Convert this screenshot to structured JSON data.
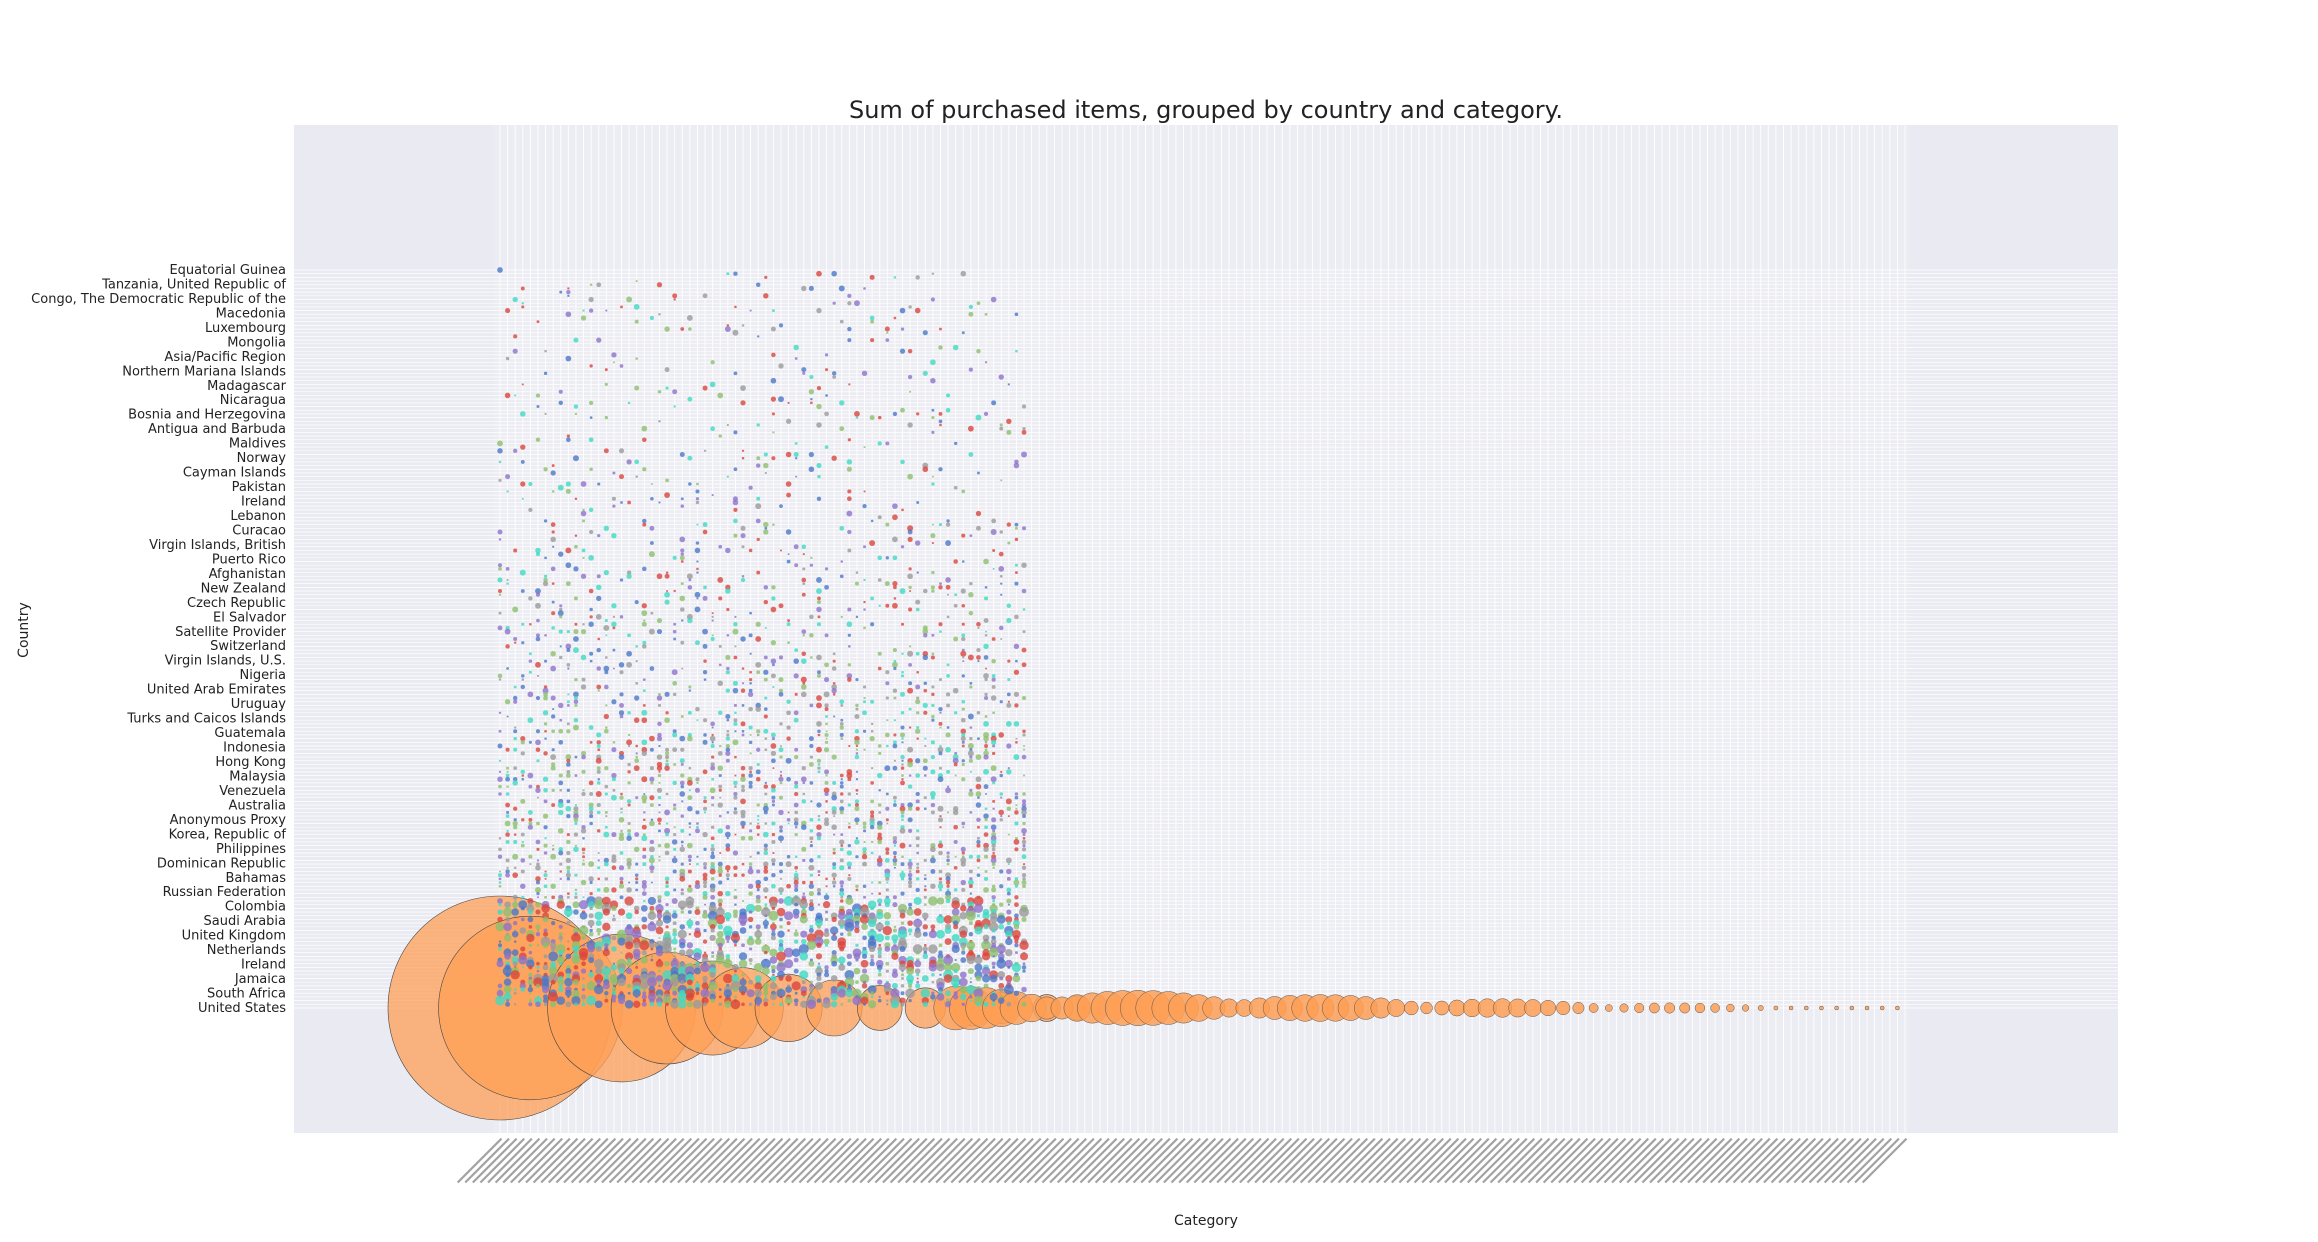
{
  "chart_data": {
    "type": "scatter",
    "title": "Sum of purchased items, grouped by country and category.",
    "xlabel": "Category",
    "ylabel": "Country",
    "grid": true,
    "legend": "none",
    "x_category_count": 186,
    "countries_labeled": [
      "Equatorial Guinea",
      "Tanzania, United Republic of",
      "Congo, The Democratic Republic of the",
      "Macedonia",
      "Luxembourg",
      "Mongolia",
      "Asia/Pacific Region",
      "Northern Mariana Islands",
      "Madagascar",
      "Nicaragua",
      "Bosnia and Herzegovina",
      "Antigua and Barbuda",
      "Maldives",
      "Norway",
      "Cayman Islands",
      "Pakistan",
      "Ireland",
      "Lebanon",
      "Curacao",
      "Virgin Islands, British",
      "Puerto Rico",
      "Afghanistan",
      "New Zealand",
      "Czech Republic",
      "El Salvador",
      "Satellite Provider",
      "Switzerland",
      "Virgin Islands, U.S.",
      "Nigeria",
      "United Arab Emirates",
      "Uruguay",
      "Turks and Caicos Islands",
      "Guatemala",
      "Indonesia",
      "Hong Kong",
      "Malaysia",
      "Venezuela",
      "Australia",
      "Anonymous Proxy",
      "Korea, Republic of",
      "Philippines",
      "Dominican Republic",
      "Bahamas",
      "Russian Federation",
      "Colombia",
      "Saudi Arabia",
      "United Kingdom",
      "Netherlands",
      "Ireland",
      "Jamaica",
      "South Africa",
      "United States"
    ],
    "colors": {
      "us_bubbles": "#fe9f55",
      "teal": "#3fd9c2",
      "blue": "#4a77c7",
      "green": "#8cbf6d",
      "red": "#d9453c",
      "purple": "#8d72c9",
      "grey": "#9a9a9a"
    },
    "series_summary": [
      {
        "name": "",
        "country": "United States",
        "values_sum_relative": [
          1.0,
          0.82,
          0.66,
          0.48,
          0.38,
          0.33,
          0.26,
          0.22,
          0.18,
          0.16,
          0.14,
          0.12,
          0.11,
          0.1,
          0.09,
          0.08,
          0.07,
          0.06,
          0.05,
          0.045,
          0.04,
          0.035,
          0.03,
          0.028,
          0.025,
          0.022,
          0.02,
          0.018
        ]
      }
    ]
  }
}
